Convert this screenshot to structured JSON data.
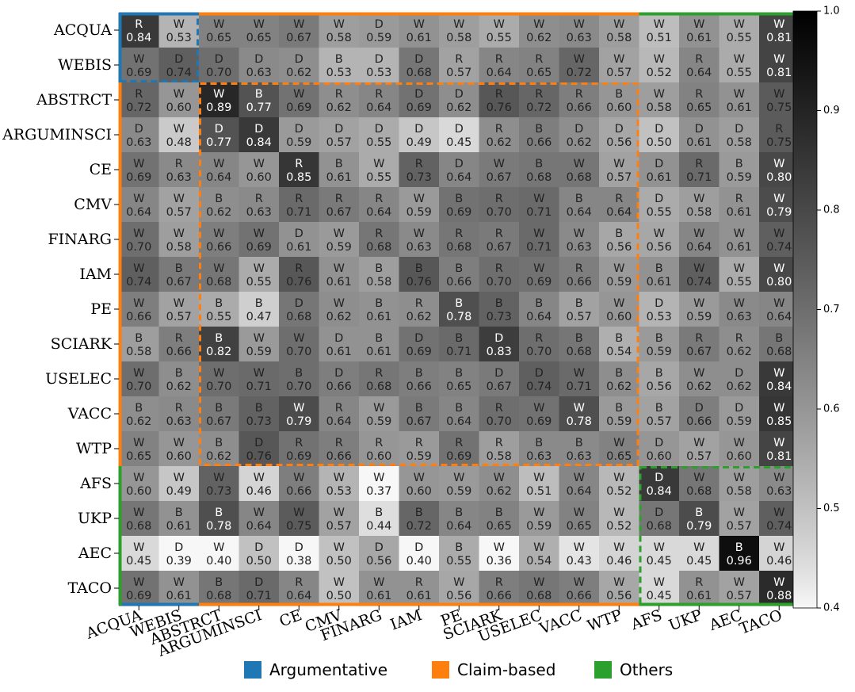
{
  "chart_data": {
    "type": "heatmap",
    "rows": [
      "ACQUA",
      "WEBIS",
      "ABSTRCT",
      "ARGUMINSCI",
      "CE",
      "CMV",
      "FINARG",
      "IAM",
      "PE",
      "SCIARK",
      "USELEC",
      "VACC",
      "WTP",
      "AFS",
      "UKP",
      "AEC",
      "TACO"
    ],
    "columns": [
      "ACQUA",
      "WEBIS",
      "ABSTRCT",
      "ARGUMINSCI",
      "CE",
      "CMV",
      "FINARG",
      "IAM",
      "PE",
      "SCIARK",
      "USELEC",
      "VACC",
      "WTP",
      "AFS",
      "UKP",
      "AEC",
      "TACO"
    ],
    "values": [
      [
        0.84,
        0.53,
        0.65,
        0.65,
        0.67,
        0.58,
        0.59,
        0.61,
        0.58,
        0.55,
        0.62,
        0.63,
        0.58,
        0.51,
        0.61,
        0.55,
        0.81
      ],
      [
        0.69,
        0.74,
        0.7,
        0.63,
        0.62,
        0.53,
        0.53,
        0.68,
        0.57,
        0.64,
        0.65,
        0.72,
        0.57,
        0.52,
        0.64,
        0.55,
        0.81
      ],
      [
        0.72,
        0.6,
        0.89,
        0.77,
        0.69,
        0.62,
        0.64,
        0.69,
        0.62,
        0.76,
        0.72,
        0.66,
        0.6,
        0.58,
        0.65,
        0.61,
        0.75
      ],
      [
        0.63,
        0.48,
        0.77,
        0.84,
        0.59,
        0.57,
        0.55,
        0.49,
        0.45,
        0.62,
        0.66,
        0.62,
        0.56,
        0.5,
        0.61,
        0.58,
        0.75
      ],
      [
        0.69,
        0.63,
        0.64,
        0.6,
        0.85,
        0.61,
        0.55,
        0.73,
        0.64,
        0.67,
        0.68,
        0.68,
        0.57,
        0.61,
        0.71,
        0.59,
        0.8
      ],
      [
        0.64,
        0.57,
        0.62,
        0.63,
        0.71,
        0.67,
        0.64,
        0.59,
        0.69,
        0.7,
        0.71,
        0.64,
        0.64,
        0.55,
        0.58,
        0.61,
        0.79
      ],
      [
        0.7,
        0.58,
        0.66,
        0.69,
        0.61,
        0.59,
        0.68,
        0.63,
        0.68,
        0.67,
        0.71,
        0.63,
        0.56,
        0.56,
        0.64,
        0.61,
        0.74
      ],
      [
        0.74,
        0.67,
        0.68,
        0.55,
        0.76,
        0.61,
        0.58,
        0.76,
        0.66,
        0.7,
        0.69,
        0.66,
        0.59,
        0.61,
        0.74,
        0.55,
        0.8
      ],
      [
        0.66,
        0.57,
        0.55,
        0.47,
        0.68,
        0.62,
        0.61,
        0.62,
        0.78,
        0.73,
        0.64,
        0.57,
        0.6,
        0.53,
        0.59,
        0.63,
        0.64
      ],
      [
        0.58,
        0.66,
        0.82,
        0.59,
        0.7,
        0.61,
        0.61,
        0.69,
        0.71,
        0.83,
        0.7,
        0.68,
        0.54,
        0.59,
        0.67,
        0.62,
        0.68
      ],
      [
        0.7,
        0.62,
        0.7,
        0.71,
        0.7,
        0.66,
        0.68,
        0.66,
        0.65,
        0.67,
        0.74,
        0.71,
        0.62,
        0.56,
        0.62,
        0.62,
        0.84
      ],
      [
        0.62,
        0.63,
        0.67,
        0.73,
        0.79,
        0.64,
        0.59,
        0.67,
        0.64,
        0.7,
        0.69,
        0.78,
        0.59,
        0.57,
        0.66,
        0.59,
        0.85
      ],
      [
        0.65,
        0.6,
        0.62,
        0.76,
        0.69,
        0.66,
        0.6,
        0.59,
        0.69,
        0.58,
        0.63,
        0.63,
        0.65,
        0.6,
        0.57,
        0.6,
        0.81
      ],
      [
        0.6,
        0.49,
        0.73,
        0.46,
        0.66,
        0.53,
        0.37,
        0.6,
        0.59,
        0.62,
        0.51,
        0.64,
        0.52,
        0.84,
        0.68,
        0.58,
        0.63
      ],
      [
        0.68,
        0.61,
        0.78,
        0.64,
        0.75,
        0.57,
        0.44,
        0.72,
        0.64,
        0.65,
        0.59,
        0.65,
        0.52,
        0.68,
        0.79,
        0.57,
        0.74
      ],
      [
        0.45,
        0.39,
        0.4,
        0.5,
        0.38,
        0.5,
        0.56,
        0.4,
        0.55,
        0.36,
        0.54,
        0.43,
        0.46,
        0.45,
        0.45,
        0.96,
        0.46
      ],
      [
        0.69,
        0.61,
        0.68,
        0.71,
        0.64,
        0.5,
        0.61,
        0.61,
        0.56,
        0.66,
        0.68,
        0.66,
        0.56,
        0.45,
        0.61,
        0.57,
        0.88
      ]
    ],
    "letters": [
      [
        "R",
        "W",
        "W",
        "W",
        "W",
        "W",
        "D",
        "W",
        "W",
        "W",
        "W",
        "W",
        "W",
        "W",
        "W",
        "W",
        "W"
      ],
      [
        "W",
        "D",
        "D",
        "D",
        "D",
        "B",
        "D",
        "D",
        "R",
        "R",
        "R",
        "W",
        "W",
        "W",
        "R",
        "W",
        "W"
      ],
      [
        "R",
        "W",
        "W",
        "B",
        "W",
        "R",
        "R",
        "D",
        "D",
        "R",
        "R",
        "R",
        "B",
        "W",
        "R",
        "W",
        "W"
      ],
      [
        "D",
        "W",
        "D",
        "D",
        "D",
        "D",
        "D",
        "D",
        "D",
        "R",
        "B",
        "D",
        "D",
        "D",
        "D",
        "D",
        "R"
      ],
      [
        "W",
        "R",
        "W",
        "W",
        "R",
        "B",
        "W",
        "R",
        "D",
        "W",
        "B",
        "W",
        "W",
        "D",
        "R",
        "B",
        "W"
      ],
      [
        "W",
        "W",
        "B",
        "R",
        "R",
        "R",
        "R",
        "W",
        "B",
        "R",
        "W",
        "B",
        "R",
        "D",
        "W",
        "R",
        "W"
      ],
      [
        "W",
        "W",
        "W",
        "W",
        "D",
        "W",
        "R",
        "W",
        "R",
        "R",
        "W",
        "W",
        "B",
        "W",
        "W",
        "W",
        "W"
      ],
      [
        "W",
        "B",
        "W",
        "W",
        "R",
        "W",
        "B",
        "B",
        "B",
        "R",
        "W",
        "R",
        "W",
        "B",
        "W",
        "W",
        "W"
      ],
      [
        "W",
        "W",
        "B",
        "B",
        "D",
        "W",
        "B",
        "R",
        "B",
        "B",
        "B",
        "B",
        "W",
        "D",
        "W",
        "W",
        "W"
      ],
      [
        "B",
        "R",
        "B",
        "W",
        "W",
        "D",
        "B",
        "D",
        "B",
        "D",
        "R",
        "B",
        "B",
        "B",
        "R",
        "R",
        "B"
      ],
      [
        "W",
        "B",
        "W",
        "W",
        "B",
        "D",
        "R",
        "B",
        "B",
        "D",
        "D",
        "W",
        "B",
        "B",
        "W",
        "D",
        "W"
      ],
      [
        "B",
        "R",
        "B",
        "B",
        "W",
        "R",
        "W",
        "B",
        "B",
        "R",
        "W",
        "W",
        "B",
        "B",
        "D",
        "D",
        "W"
      ],
      [
        "W",
        "W",
        "B",
        "D",
        "R",
        "R",
        "R",
        "R",
        "R",
        "R",
        "B",
        "B",
        "W",
        "D",
        "W",
        "W",
        "W"
      ],
      [
        "W",
        "W",
        "W",
        "W",
        "W",
        "W",
        "W",
        "W",
        "W",
        "W",
        "W",
        "W",
        "W",
        "D",
        "W",
        "W",
        "W"
      ],
      [
        "W",
        "B",
        "B",
        "W",
        "W",
        "W",
        "B",
        "B",
        "B",
        "B",
        "W",
        "W",
        "W",
        "D",
        "B",
        "W",
        "W"
      ],
      [
        "W",
        "D",
        "W",
        "D",
        "D",
        "W",
        "D",
        "D",
        "B",
        "W",
        "W",
        "W",
        "W",
        "W",
        "W",
        "B",
        "W"
      ],
      [
        "W",
        "W",
        "B",
        "D",
        "R",
        "W",
        "W",
        "R",
        "W",
        "R",
        "W",
        "W",
        "W",
        "W",
        "R",
        "W",
        "W"
      ]
    ],
    "colorbar": {
      "range": [
        0.4,
        1.0
      ],
      "ticks": [
        "0.4",
        "0.5",
        "0.6",
        "0.7",
        "0.8",
        "0.9",
        "1.0"
      ]
    },
    "groups": [
      {
        "name": "Argumentative",
        "color": "#1f77b4",
        "start": 0,
        "end": 1
      },
      {
        "name": "Claim-based",
        "color": "#ff7f0e",
        "start": 2,
        "end": 12
      },
      {
        "name": "Others",
        "color": "#2ca02c",
        "start": 13,
        "end": 16
      }
    ],
    "legend": {
      "position": "bottom-center"
    },
    "colormap": "Greys"
  }
}
